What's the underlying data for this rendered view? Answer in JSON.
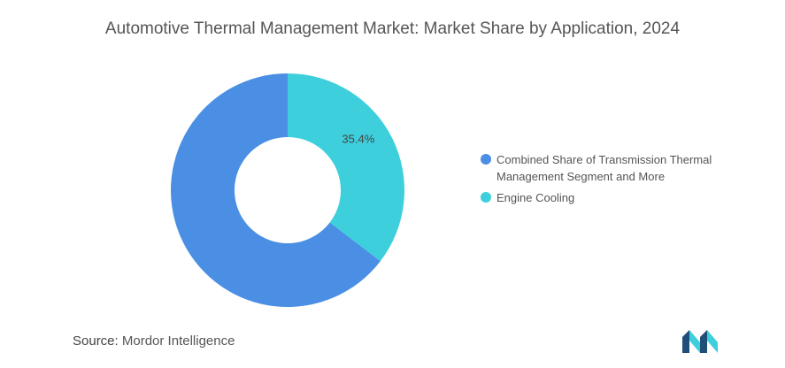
{
  "chart_data": {
    "type": "pie",
    "title": "Automotive Thermal Management Market: Market Share by Application, 2024",
    "donut": true,
    "slices": [
      {
        "name": "Engine Cooling",
        "value": 35.4,
        "label": "35.4%",
        "color": "#3ecfdc"
      },
      {
        "name": "Combined Share of Transmission Thermal Management Segment and More",
        "value": 64.6,
        "label": "",
        "color": "#4a8fe4"
      }
    ],
    "legend": {
      "placement": "right",
      "entries": [
        {
          "label": "Combined Share of Transmission Thermal Management Segment and More",
          "color": "#4a8fe4"
        },
        {
          "label": "Engine Cooling",
          "color": "#3ecfdc"
        }
      ]
    }
  },
  "footer": {
    "source_key": "Source:",
    "source_value": "Mordor Intelligence"
  },
  "logo": {
    "icon": "mordor-intelligence-logo-icon",
    "colors": [
      "#1f4e79",
      "#3ecfdc"
    ]
  }
}
